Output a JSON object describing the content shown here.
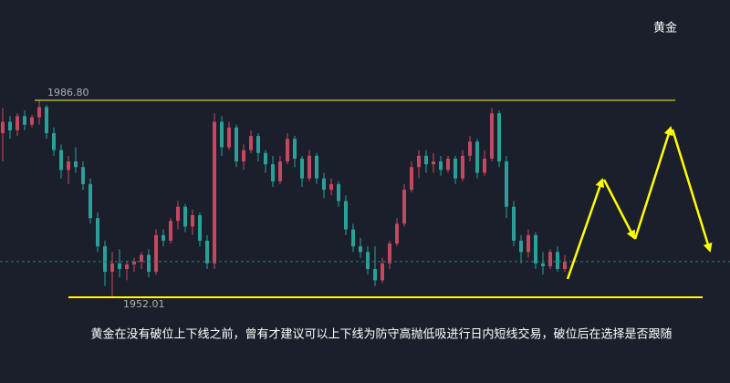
{
  "chart_data": {
    "type": "candlestick",
    "title": "黄金",
    "caption": "黄金在没有破位上下线之前，曾有才建议可以上下线为防守高抛低吸进行日内短线交易，破位后在选择是否跟随",
    "ylim": [
      1948.14,
      2004.52
    ],
    "categories": [
      null,
      null,
      null,
      null,
      null,
      null,
      null,
      null,
      null,
      null,
      null,
      null,
      null,
      null,
      null,
      null,
      null,
      null,
      null,
      null,
      null,
      null,
      null,
      null,
      null,
      null,
      null,
      null,
      null,
      null,
      null,
      null,
      null,
      null,
      null,
      null,
      null,
      null,
      null,
      null,
      null,
      null,
      null,
      null,
      null,
      null,
      null,
      null,
      null,
      null,
      null,
      null,
      null,
      null,
      null,
      null,
      null,
      null,
      null,
      null,
      null,
      null,
      null,
      null,
      null,
      null,
      null,
      null,
      null,
      null,
      null,
      null,
      null,
      null,
      null,
      null,
      null,
      null
    ],
    "open": [
      1981,
      1983,
      1981.5,
      1984,
      1982.5,
      1983.8,
      1985.6,
      1981,
      1978,
      1974.5,
      1976,
      1975,
      1972,
      1966,
      1961,
      1956.5,
      1958,
      1957,
      1957.8,
      1958.3,
      1959.5,
      1956.5,
      1963,
      1962,
      1965.5,
      1968,
      1964.5,
      1966.5,
      1962,
      1958,
      1983,
      1978.5,
      1982,
      1976,
      1978,
      1980.5,
      1977.5,
      1975.5,
      1972.5,
      1976,
      1980,
      1976.5,
      1973,
      1977,
      1973,
      1971,
      1972,
      1969,
      1964,
      1961,
      1960,
      1957,
      1955,
      1958,
      1961.5,
      1965,
      1971,
      1975,
      1977,
      1975.5,
      1976,
      1974.5,
      1976.5,
      1973,
      1977,
      1979.5,
      1974,
      1976.5,
      1984.5,
      1976,
      1968,
      1962,
      1960,
      1963,
      1958,
      1957.5,
      1960,
      1957
    ],
    "high": [
      1985.5,
      1984,
      1984.5,
      1985,
      1984.2,
      1986.8,
      1986,
      1982,
      1979,
      1977,
      1978.5,
      1976,
      1973,
      1967,
      1962,
      1960,
      1960.5,
      1958.5,
      1959,
      1960,
      1960.5,
      1964,
      1964,
      1966,
      1969,
      1968.5,
      1967.5,
      1967,
      1963,
      1984.5,
      1984,
      1983,
      1982.5,
      1979,
      1981.5,
      1981,
      1978,
      1977,
      1977,
      1981,
      1980.5,
      1977,
      1978,
      1977.5,
      1974,
      1973,
      1972.5,
      1970,
      1965,
      1962.5,
      1961,
      1961,
      1959,
      1962,
      1966,
      1972,
      1976,
      1978,
      1978,
      1977.5,
      1977,
      1977,
      1977,
      1978,
      1980.5,
      1980,
      1978,
      1985.5,
      1985,
      1977,
      1969,
      1963,
      1964,
      1963.5,
      1960,
      1960.5,
      1961,
      1959.5
    ],
    "low": [
      1976,
      1980,
      1980.5,
      1981.5,
      1982,
      1982.5,
      1980,
      1977,
      1973,
      1972,
      1974,
      1971,
      1965,
      1960,
      1954,
      1952.01,
      1955.5,
      1955,
      1956.5,
      1957,
      1955.5,
      1956,
      1961,
      1961.5,
      1964,
      1963.5,
      1963,
      1961,
      1957,
      1957,
      1977,
      1978,
      1975,
      1974.5,
      1977.5,
      1976,
      1974,
      1971.5,
      1972,
      1975.5,
      1975,
      1971.5,
      1972.5,
      1972,
      1969.5,
      1970,
      1968,
      1963,
      1960,
      1959,
      1956,
      1954,
      1954.5,
      1957,
      1961,
      1964.5,
      1970.5,
      1973,
      1974,
      1974,
      1973.5,
      1974,
      1972,
      1972.5,
      1976,
      1973,
      1973.5,
      1976,
      1975,
      1966,
      1961,
      1958,
      1959,
      1957,
      1956,
      1957,
      1956.5,
      1956.5
    ],
    "close": [
      1983,
      1981.5,
      1984,
      1982.5,
      1983.8,
      1985.6,
      1981,
      1978,
      1974.5,
      1976,
      1975,
      1972,
      1966,
      1961,
      1956.5,
      1958,
      1957,
      1957.8,
      1958.3,
      1959.5,
      1956.5,
      1963,
      1962,
      1965.5,
      1968,
      1964.5,
      1966.5,
      1962,
      1958,
      1983,
      1978.5,
      1982,
      1976,
      1978,
      1980.5,
      1977.5,
      1975.5,
      1972.5,
      1976,
      1980,
      1976.5,
      1973,
      1977,
      1973,
      1971,
      1972,
      1969,
      1964,
      1961,
      1960,
      1957,
      1955,
      1958,
      1961.5,
      1965,
      1971,
      1975,
      1977,
      1975.5,
      1976,
      1974.5,
      1976.5,
      1973,
      1977,
      1979.5,
      1974,
      1976.5,
      1984.5,
      1976,
      1968,
      1962,
      1960,
      1963,
      1958,
      1957.5,
      1960,
      1957,
      1958.3
    ],
    "up_color": "#c4485f",
    "down_color": "#2aa198",
    "high_level": {
      "value": 1986.8,
      "label": "1986.80"
    },
    "low_level": {
      "value": 1952.01,
      "label": "1952.01"
    },
    "last_price": 1958.3
  }
}
